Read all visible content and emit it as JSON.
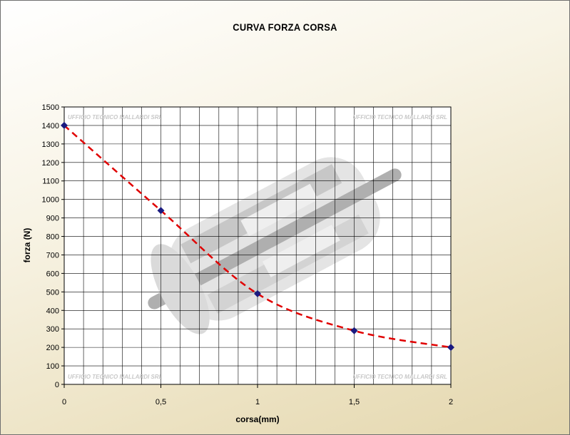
{
  "chart_data": {
    "type": "line",
    "title": "CURVA FORZA CORSA",
    "xlabel": "corsa(mm)",
    "ylabel": "forza (N)",
    "x": [
      0,
      0.5,
      1,
      1.5,
      2
    ],
    "x_tick_labels": [
      "0",
      "0,5",
      "1",
      "1,5",
      "2"
    ],
    "xlim": [
      0,
      2
    ],
    "ylim": [
      0,
      1500
    ],
    "y_ticks": [
      0,
      100,
      200,
      300,
      400,
      500,
      600,
      700,
      800,
      900,
      1000,
      1100,
      1200,
      1300,
      1400,
      1500
    ],
    "series": [
      {
        "values": [
          1400,
          940,
          490,
          290,
          200
        ],
        "color": "#1a1a80",
        "trend_color": "#e00000"
      }
    ],
    "grid": true,
    "watermarks": [
      "UFFICIO TECNICO MALLARDI SRL",
      "UFFICIO TECNICO MALLARDI SRL",
      "UFFICIO TECNICO MALLARDI SRL",
      "UFFICIO TECNICO MALLARDI SRL"
    ]
  }
}
